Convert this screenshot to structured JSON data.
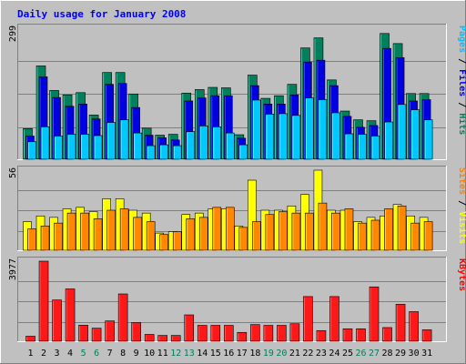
{
  "chart_data": [
    {
      "type": "bar",
      "title": "Daily usage for January 2008",
      "categories": [
        "1",
        "2",
        "3",
        "4",
        "5",
        "6",
        "7",
        "8",
        "9",
        "10",
        "11",
        "12",
        "13",
        "14",
        "15",
        "16",
        "17",
        "18",
        "19",
        "20",
        "21",
        "22",
        "23",
        "24",
        "25",
        "26",
        "27",
        "28",
        "29",
        "30",
        "31"
      ],
      "weekend_days": [
        "5",
        "6",
        "12",
        "13",
        "19",
        "20",
        "26",
        "27"
      ],
      "ymax_label": "299",
      "ylim": [
        0,
        299
      ],
      "right_label_parts": [
        {
          "text": "Pages",
          "color": "#00c0ff"
        },
        {
          "text": " / ",
          "color": "#000000"
        },
        {
          "text": "Files",
          "color": "#0000ff"
        },
        {
          "text": " / ",
          "color": "#000000"
        },
        {
          "text": "Hits",
          "color": "#008060"
        }
      ],
      "series": [
        {
          "name": "Hits",
          "color": "#00805c",
          "values": [
            70,
            213,
            157,
            147,
            152,
            101,
            198,
            198,
            149,
            71,
            55,
            57,
            151,
            159,
            164,
            163,
            56,
            192,
            139,
            145,
            171,
            254,
            277,
            181,
            110,
            90,
            88,
            287,
            264,
            150,
            150
          ]
        },
        {
          "name": "Files",
          "color": "#0000e0",
          "values": [
            53,
            188,
            141,
            121,
            126,
            92,
            171,
            173,
            118,
            55,
            49,
            44,
            133,
            140,
            145,
            145,
            48,
            168,
            126,
            126,
            147,
            222,
            226,
            168,
            98,
            73,
            77,
            253,
            232,
            133,
            136
          ]
        },
        {
          "name": "Pages",
          "color": "#00c8ff",
          "values": [
            40,
            74,
            53,
            57,
            57,
            54,
            84,
            90,
            60,
            31,
            33,
            31,
            63,
            76,
            74,
            60,
            33,
            135,
            103,
            104,
            100,
            140,
            136,
            106,
            58,
            57,
            53,
            85,
            125,
            113,
            90
          ]
        }
      ]
    },
    {
      "type": "bar",
      "ymax_label": "56",
      "ylim": [
        0,
        56
      ],
      "right_label_parts": [
        {
          "text": "Sites",
          "color": "#ff8000"
        },
        {
          "text": " / ",
          "color": "#000000"
        },
        {
          "text": "Visits",
          "color": "#ffff00"
        }
      ],
      "series": [
        {
          "name": "Visits",
          "color": "#ffff00",
          "values": [
            20,
            24,
            23,
            29,
            30,
            27,
            36,
            36,
            28,
            26,
            12,
            13,
            25,
            26,
            29,
            29,
            17,
            49,
            28,
            28,
            31,
            39,
            56,
            28,
            28,
            20,
            23,
            24,
            32,
            24,
            23
          ]
        },
        {
          "name": "Sites",
          "color": "#ff8800",
          "values": [
            15,
            17,
            19,
            26,
            26,
            22,
            28,
            29,
            23,
            20,
            11,
            13,
            22,
            23,
            30,
            30,
            16,
            20,
            25,
            27,
            26,
            26,
            33,
            26,
            29,
            19,
            21,
            29,
            31,
            19,
            20
          ]
        }
      ]
    },
    {
      "type": "bar",
      "ymax_label": "3977",
      "ylim": [
        0,
        3977
      ],
      "right_label_parts": [
        {
          "text": "KBytes",
          "color": "#ff0000"
        }
      ],
      "series": [
        {
          "name": "KBytes",
          "color": "#ff1818",
          "values": [
            250,
            3977,
            2050,
            2600,
            800,
            650,
            1010,
            2350,
            930,
            340,
            290,
            290,
            1310,
            790,
            790,
            790,
            440,
            830,
            790,
            790,
            870,
            2220,
            530,
            2220,
            620,
            620,
            2700,
            680,
            1840,
            1470,
            570
          ]
        }
      ]
    }
  ]
}
